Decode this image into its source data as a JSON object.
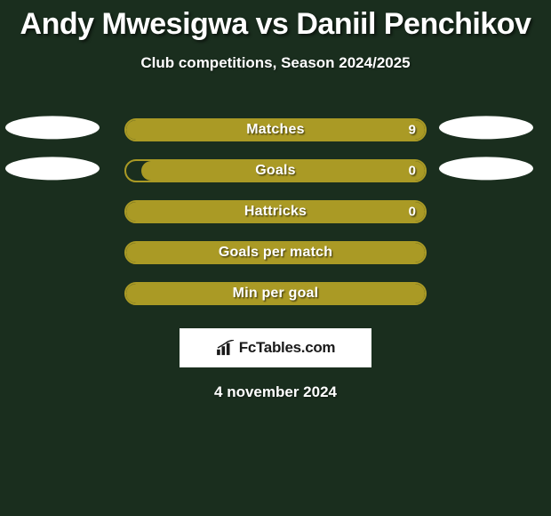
{
  "background_color": "#1a2e1e",
  "title": "Andy Mwesigwa vs Daniil Penchikov",
  "title_fontsize": 34,
  "title_color": "#ffffff",
  "subtitle": "Club competitions, Season 2024/2025",
  "subtitle_fontsize": 17,
  "bar_border_color": "#aa9a25",
  "bar_fill_color": "#aa9a25",
  "ellipse_color": "#ffffff",
  "rows": [
    {
      "label": "Matches",
      "value_right": "9",
      "fill_side": "right",
      "fill_pct": 100,
      "show_left_ellipse": true,
      "show_right_ellipse": true,
      "show_value": true
    },
    {
      "label": "Goals",
      "value_right": "0",
      "fill_side": "right",
      "fill_pct": 95,
      "show_left_ellipse": true,
      "show_right_ellipse": true,
      "show_value": true
    },
    {
      "label": "Hattricks",
      "value_right": "0",
      "fill_side": "right",
      "fill_pct": 100,
      "show_left_ellipse": false,
      "show_right_ellipse": false,
      "show_value": true
    },
    {
      "label": "Goals per match",
      "value_right": "",
      "fill_side": "left",
      "fill_pct": 100,
      "show_left_ellipse": false,
      "show_right_ellipse": false,
      "show_value": false
    },
    {
      "label": "Min per goal",
      "value_right": "",
      "fill_side": "left",
      "fill_pct": 100,
      "show_left_ellipse": false,
      "show_right_ellipse": false,
      "show_value": false
    }
  ],
  "logo_text": "FcTables.com",
  "date": "4 november 2024"
}
